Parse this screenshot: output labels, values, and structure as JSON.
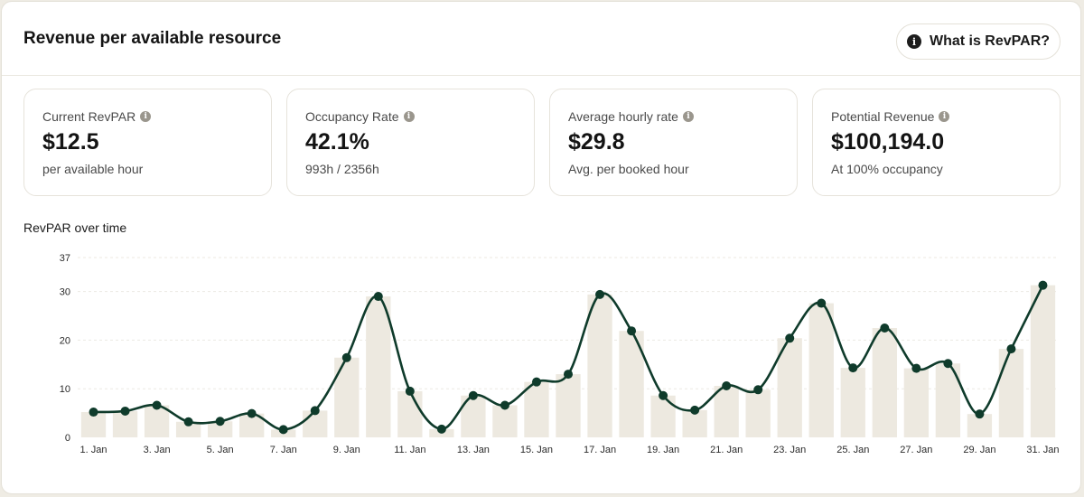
{
  "header": {
    "title": "Revenue per available resource",
    "help_label": "What is RevPAR?",
    "help_icon": "info-icon"
  },
  "kpis": [
    {
      "label": "Current RevPAR",
      "value": "$12.5",
      "sub": "per available hour"
    },
    {
      "label": "Occupancy Rate",
      "value": "42.1%",
      "sub": "993h / 2356h"
    },
    {
      "label": "Average hourly rate",
      "value": "$29.8",
      "sub": "Avg. per booked hour"
    },
    {
      "label": "Potential Revenue",
      "value": "$100,194.0",
      "sub": "At 100% occupancy"
    }
  ],
  "chart_title": "RevPAR over time",
  "colors": {
    "bar": "#ede9e0",
    "line": "#0f3b2b",
    "grid": "#ece9e2"
  },
  "chart_data": {
    "type": "bar",
    "title": "RevPAR over time",
    "ylim": [
      0,
      37
    ],
    "yticks": [
      0,
      10,
      20,
      30,
      37
    ],
    "categories": [
      "1. Jan",
      "2. Jan",
      "3. Jan",
      "4. Jan",
      "5. Jan",
      "6. Jan",
      "7. Jan",
      "8. Jan",
      "9. Jan",
      "10. Jan",
      "11. Jan",
      "12. Jan",
      "13. Jan",
      "14. Jan",
      "15. Jan",
      "16. Jan",
      "17. Jan",
      "18. Jan",
      "19. Jan",
      "20. Jan",
      "21. Jan",
      "22. Jan",
      "23. Jan",
      "24. Jan",
      "25. Jan",
      "26. Jan",
      "27. Jan",
      "28. Jan",
      "29. Jan",
      "30. Jan",
      "31. Jan"
    ],
    "xtick_labels": [
      "1. Jan",
      "",
      "3. Jan",
      "",
      "5. Jan",
      "",
      "7. Jan",
      "",
      "9. Jan",
      "",
      "11. Jan",
      "",
      "13. Jan",
      "",
      "15. Jan",
      "",
      "17. Jan",
      "",
      "19. Jan",
      "",
      "21. Jan",
      "",
      "23. Jan",
      "",
      "25. Jan",
      "",
      "27. Jan",
      "",
      "29. Jan",
      "",
      "31. Jan"
    ],
    "series": [
      {
        "name": "RevPAR",
        "kind": "bar+line",
        "values": [
          5.2,
          5.4,
          6.6,
          3.2,
          3.3,
          4.9,
          1.6,
          5.5,
          16.4,
          29.0,
          9.5,
          1.7,
          8.6,
          6.6,
          11.4,
          13.0,
          29.4,
          21.9,
          8.6,
          5.6,
          10.6,
          9.8,
          20.4,
          27.6,
          14.3,
          22.5,
          14.2,
          15.2,
          4.8,
          18.2,
          31.3
        ]
      }
    ]
  }
}
